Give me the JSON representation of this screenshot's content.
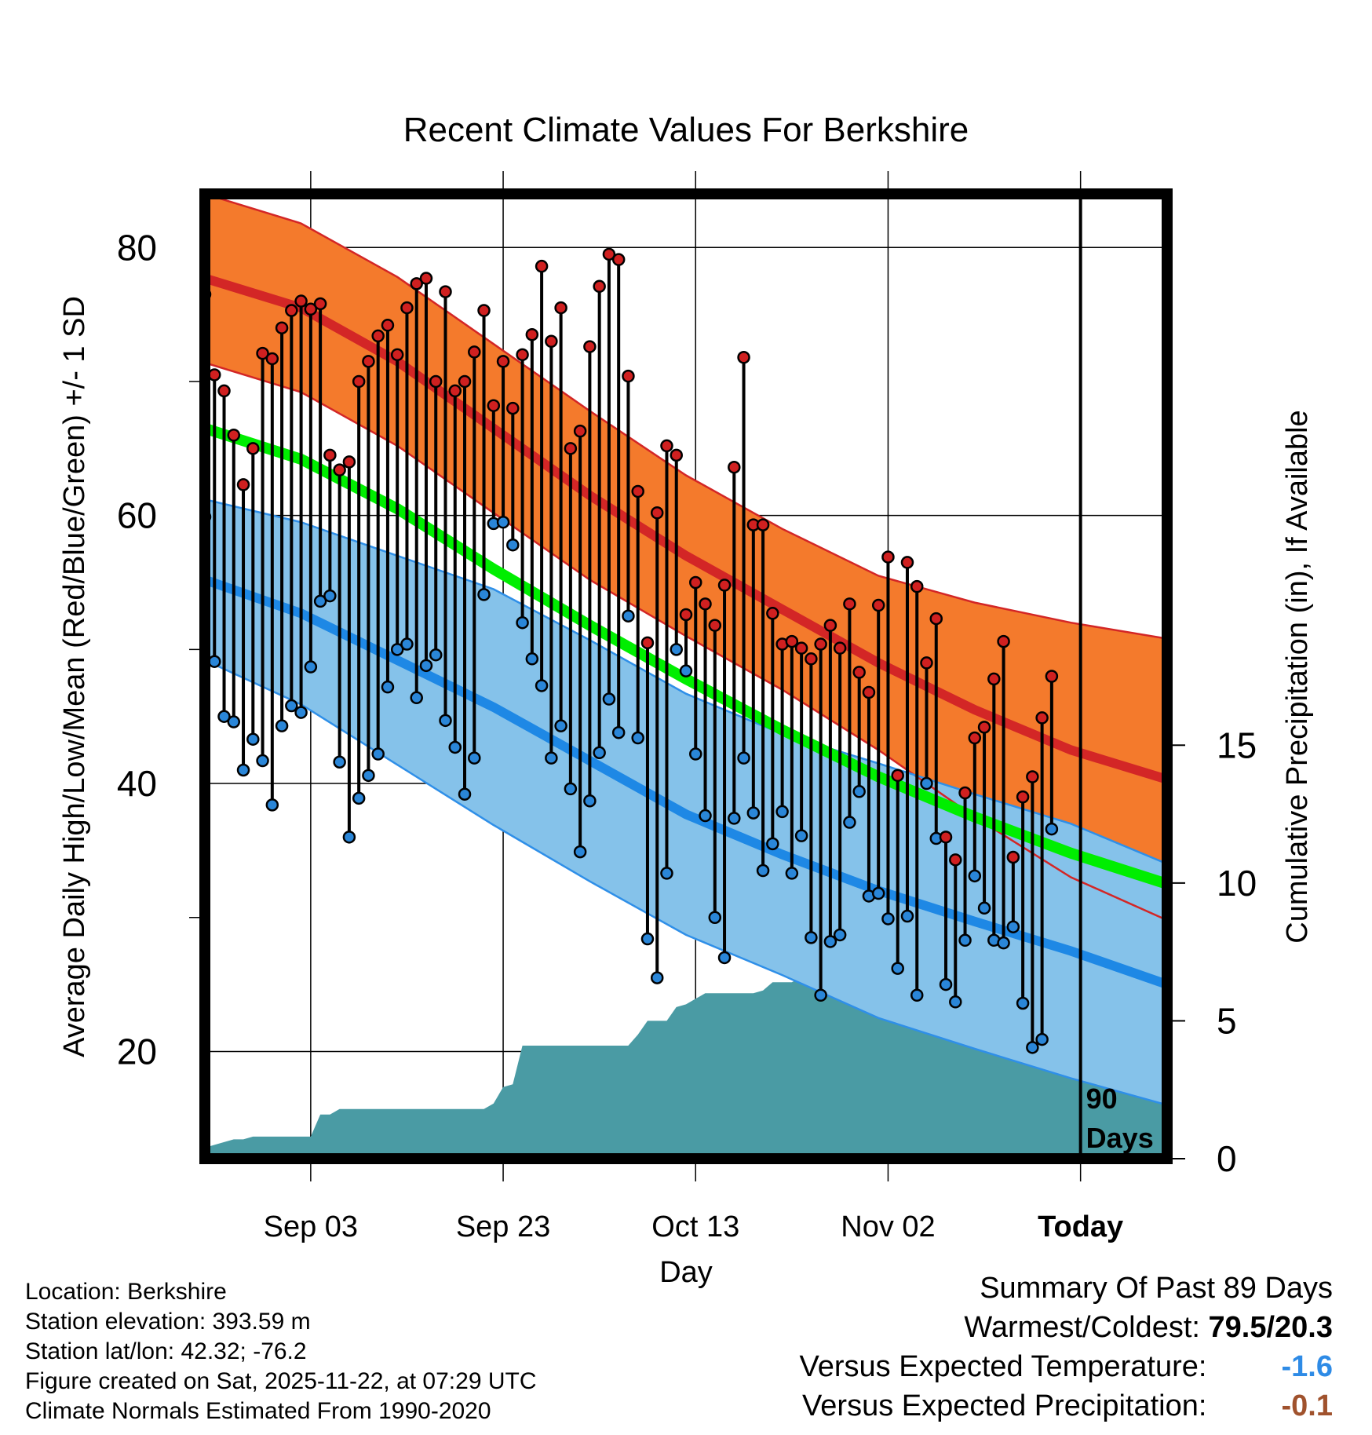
{
  "chart_data": {
    "type": "line",
    "title": "Recent Climate Values For Berkshire",
    "xlabel": "Day",
    "ylabel": "Average Daily High/Low/Mean (Red/Blue/Green) +/- 1 SD",
    "y2label": "Cumulative Precipitation (in), If Available",
    "x_tick_labels": [
      "Sep 03",
      "Sep 23",
      "Oct 13",
      "Nov 02",
      "Today"
    ],
    "x_tick_days": [
      11,
      31,
      51,
      71,
      91
    ],
    "xlim": [
      0,
      100
    ],
    "ylim": [
      12,
      84
    ],
    "y_ticks": [
      20,
      40,
      60,
      80
    ],
    "y2lim": [
      0,
      35
    ],
    "y2_ticks": [
      0,
      5,
      10,
      15
    ],
    "today_day": 91,
    "today_label": "90\nDays",
    "colors": {
      "high_band": "#f47a2c",
      "high_line": "#d32626",
      "low_band": "#85c2ea",
      "low_line": "#1e88e5",
      "low_edge": "#2f8fe8",
      "mean_line": "#00ee00",
      "precip": "#4a9ba4",
      "cold_text": "#2e8be6",
      "dry_text": "#a0522d"
    },
    "normals": {
      "days": [
        0,
        10,
        20,
        30,
        40,
        50,
        60,
        70,
        80,
        90,
        100
      ],
      "high_mean": [
        77.7,
        75.5,
        71.5,
        66.5,
        61.5,
        57.0,
        53.0,
        49.0,
        45.5,
        42.5,
        40.3
      ],
      "high_sd": [
        6.3,
        6.3,
        6.3,
        6.3,
        6.3,
        6.0,
        6.0,
        6.5,
        8.0,
        9.5,
        10.5
      ],
      "low_mean": [
        55.2,
        52.7,
        49.2,
        45.7,
        41.7,
        37.7,
        34.7,
        32.0,
        29.7,
        27.5,
        25.0
      ],
      "low_sd": [
        6.0,
        6.8,
        7.8,
        8.8,
        9.0,
        9.0,
        9.0,
        9.5,
        9.5,
        9.5,
        9.0
      ],
      "mean": [
        66.5,
        64.2,
        60.5,
        56.0,
        51.8,
        47.8,
        44.0,
        40.5,
        37.5,
        34.8,
        32.5
      ]
    },
    "series": [
      {
        "name": "Daily High",
        "values": [
          76.5,
          70.5,
          69.3,
          66.0,
          62.3,
          65.0,
          72.1,
          71.7,
          74.0,
          75.3,
          76.0,
          75.4,
          75.8,
          64.5,
          63.4,
          64.0,
          70.0,
          71.5,
          73.4,
          74.2,
          72.0,
          75.5,
          77.3,
          77.7,
          70.0,
          76.7,
          69.3,
          70.0,
          72.2,
          75.3,
          68.2,
          71.5,
          68.0,
          72.0,
          73.5,
          78.6,
          73.0,
          75.5,
          65.0,
          66.3,
          72.6,
          77.1,
          79.5,
          79.1,
          70.4,
          61.8,
          50.5,
          60.2,
          65.2,
          64.5,
          52.6,
          55.0,
          53.4,
          51.8,
          54.8,
          63.6,
          71.8,
          59.3,
          59.3,
          52.7,
          50.4,
          50.6,
          50.1,
          49.3,
          50.4,
          51.8,
          50.1,
          53.4,
          48.3,
          46.8,
          53.3,
          56.9,
          40.6,
          56.5,
          54.7,
          49.0,
          52.3,
          36.0,
          34.3,
          39.3,
          43.4,
          44.2,
          47.8,
          50.6,
          34.5,
          39.0,
          40.5,
          44.9,
          48.0
        ]
      },
      {
        "name": "Daily Low",
        "values": [
          59.9,
          49.1,
          45.0,
          44.6,
          41.0,
          43.3,
          41.7,
          38.4,
          44.3,
          45.8,
          45.3,
          48.7,
          53.6,
          54.0,
          41.6,
          36.0,
          38.9,
          40.6,
          42.2,
          47.2,
          50.0,
          50.4,
          46.4,
          48.8,
          49.6,
          44.7,
          42.7,
          39.2,
          41.9,
          54.1,
          59.4,
          59.5,
          57.8,
          52.0,
          49.3,
          47.3,
          41.9,
          44.3,
          39.6,
          34.9,
          38.7,
          42.3,
          46.3,
          43.8,
          52.5,
          43.4,
          28.4,
          25.5,
          33.3,
          50.0,
          48.4,
          42.2,
          37.6,
          30.0,
          27.0,
          37.4,
          41.9,
          37.8,
          33.5,
          35.5,
          37.9,
          33.3,
          36.1,
          28.5,
          24.2,
          28.2,
          28.7,
          37.1,
          39.4,
          31.6,
          31.8,
          29.9,
          26.2,
          30.1,
          24.2,
          40.0,
          35.9,
          25.0,
          23.7,
          28.3,
          33.1,
          30.7,
          28.3,
          28.1,
          29.3,
          23.6,
          20.3,
          20.9,
          36.6
        ]
      }
    ],
    "precip_cumulative": {
      "days": [
        0,
        1,
        2,
        3,
        4,
        5,
        6,
        7,
        8,
        9,
        10,
        11,
        12,
        13,
        14,
        15,
        16,
        17,
        18,
        19,
        20,
        21,
        22,
        23,
        24,
        25,
        26,
        27,
        28,
        29,
        30,
        31,
        32,
        33,
        34,
        35,
        36,
        37,
        38,
        39,
        40,
        41,
        42,
        43,
        44,
        45,
        46,
        47,
        48,
        49,
        50,
        51,
        52,
        53,
        54,
        55,
        56,
        57,
        58,
        59,
        60,
        61,
        62,
        63,
        64,
        65,
        66,
        67,
        68,
        69,
        70,
        71,
        72,
        73,
        74,
        75,
        76,
        77,
        78,
        79,
        80,
        81,
        82,
        83,
        84,
        85,
        86,
        87,
        88,
        89,
        90,
        91,
        92,
        93,
        94,
        95,
        96,
        97,
        98,
        99,
        100
      ],
      "values": [
        0.4,
        0.5,
        0.6,
        0.7,
        0.7,
        0.8,
        0.8,
        0.8,
        0.8,
        0.8,
        0.8,
        0.8,
        1.6,
        1.6,
        1.8,
        1.8,
        1.8,
        1.8,
        1.8,
        1.8,
        1.8,
        1.8,
        1.8,
        1.8,
        1.8,
        1.8,
        1.8,
        1.8,
        1.8,
        1.8,
        2.0,
        2.6,
        2.7,
        4.1,
        4.1,
        4.1,
        4.1,
        4.1,
        4.1,
        4.1,
        4.1,
        4.1,
        4.1,
        4.1,
        4.1,
        4.5,
        5.0,
        5.0,
        5.0,
        5.5,
        5.6,
        5.8,
        6.0,
        6.0,
        6.0,
        6.0,
        6.0,
        6.0,
        6.1,
        6.4,
        6.4,
        6.4,
        6.6,
        6.7,
        6.7,
        6.7,
        6.7,
        6.7,
        7.3,
        8.9,
        9.0,
        9.0,
        9.0,
        9.0,
        9.0,
        9.2,
        9.2,
        9.4,
        9.5,
        9.6,
        9.7,
        9.9,
        10.0,
        10.1,
        10.8,
        11.4,
        11.4,
        11.4,
        11.4,
        11.4,
        11.4,
        11.4,
        11.4,
        11.4,
        11.4,
        11.4,
        11.4,
        11.4,
        11.4,
        11.4,
        11.4
      ]
    }
  },
  "info": {
    "location": "Location: Berkshire",
    "elevation": "Station elevation: 393.59 m",
    "latlon": "Station lat/lon: 42.32; -76.2",
    "created": "Figure created on Sat, 2025-11-22, at 07:29 UTC",
    "normals": "Climate Normals Estimated From 1990-2020"
  },
  "summary": {
    "title": "Summary Of Past 89 Days",
    "warm_cold_label": "Warmest/Coldest:",
    "warm_cold_value": "79.5/20.3",
    "temp_label": "Versus Expected Temperature:",
    "temp_value": "-1.6",
    "precip_label": "Versus Expected Precipitation:",
    "precip_value": "-0.1"
  }
}
